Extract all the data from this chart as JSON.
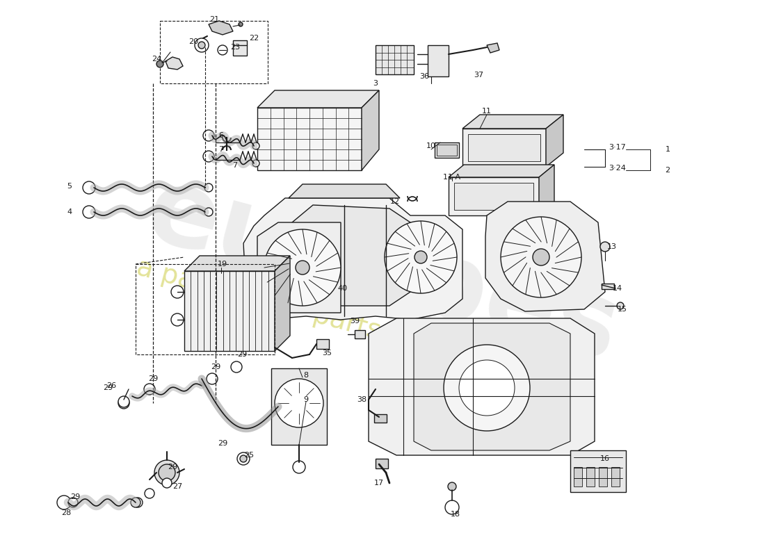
{
  "bg_color": "#ffffff",
  "line_color": "#1a1a1a",
  "lw": 1.0,
  "watermark_color": "#d0d0d0",
  "watermark_yellow": "#d4d400",
  "fig_w": 11.0,
  "fig_h": 8.0,
  "dpi": 100
}
